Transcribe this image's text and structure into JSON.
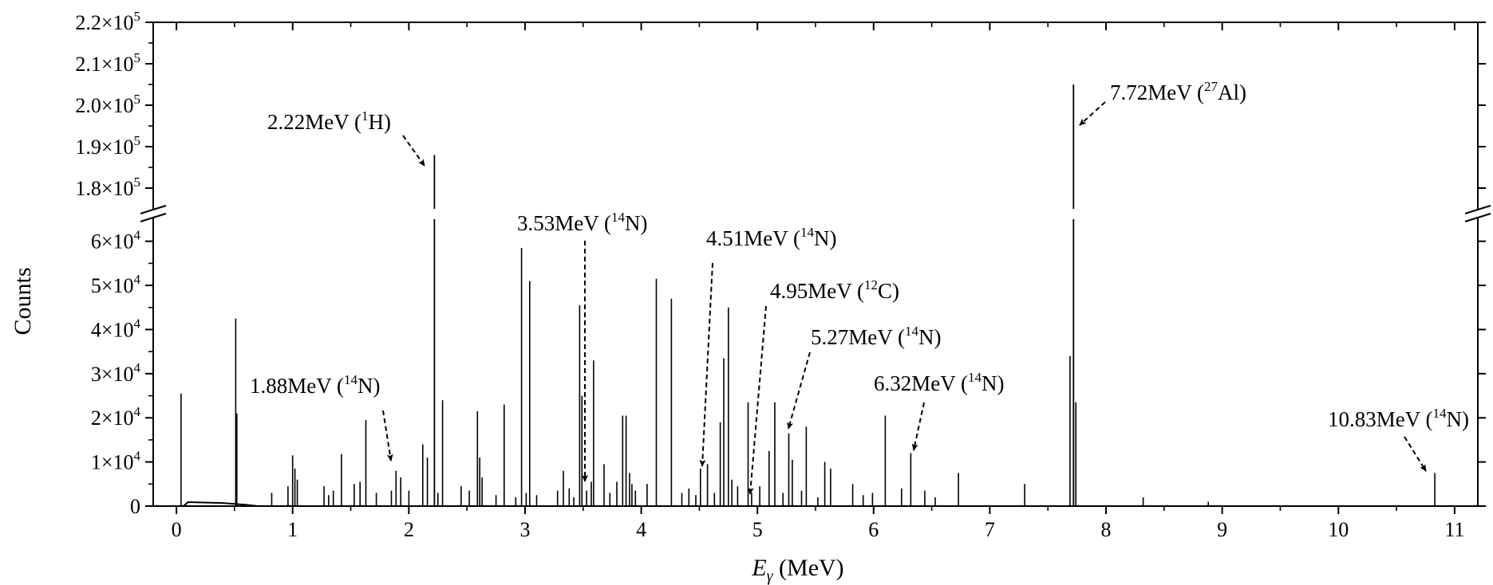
{
  "chart_data": {
    "type": "bar",
    "title": "",
    "xlabel": "E",
    "xlabel_sub": "γ",
    "xlabel_unit": " (MeV)",
    "ylabel": "Counts",
    "xlim": [
      -0.2,
      11.2
    ],
    "ylim_lower": [
      0,
      65000
    ],
    "ylim_upper": [
      175000,
      220000
    ],
    "x_ticks": [
      {
        "v": 0,
        "label": "0"
      },
      {
        "v": 1,
        "label": "1"
      },
      {
        "v": 2,
        "label": "2"
      },
      {
        "v": 3,
        "label": "3"
      },
      {
        "v": 4,
        "label": "4"
      },
      {
        "v": 5,
        "label": "5"
      },
      {
        "v": 6,
        "label": "6"
      },
      {
        "v": 7,
        "label": "7"
      },
      {
        "v": 8,
        "label": "8"
      },
      {
        "v": 9,
        "label": "9"
      },
      {
        "v": 10,
        "label": "10"
      },
      {
        "v": 11,
        "label": "11"
      }
    ],
    "y_ticks_lower": [
      {
        "v": 0,
        "mant": "0",
        "exp": ""
      },
      {
        "v": 10000,
        "mant": "1×10",
        "exp": "4"
      },
      {
        "v": 20000,
        "mant": "2×10",
        "exp": "4"
      },
      {
        "v": 30000,
        "mant": "3×10",
        "exp": "4"
      },
      {
        "v": 40000,
        "mant": "4×10",
        "exp": "4"
      },
      {
        "v": 50000,
        "mant": "5×10",
        "exp": "4"
      },
      {
        "v": 60000,
        "mant": "6×10",
        "exp": "4"
      }
    ],
    "y_ticks_upper": [
      {
        "v": 180000,
        "mant": "1.8×10",
        "exp": "5"
      },
      {
        "v": 190000,
        "mant": "1.9×10",
        "exp": "5"
      },
      {
        "v": 200000,
        "mant": "2.0×10",
        "exp": "5"
      },
      {
        "v": 210000,
        "mant": "2.1×10",
        "exp": "5"
      },
      {
        "v": 220000,
        "mant": "2.2×10",
        "exp": "5"
      }
    ],
    "peaks": [
      {
        "x": 0.04,
        "y": 25500
      },
      {
        "x": 0.51,
        "y": 42500
      },
      {
        "x": 0.52,
        "y": 21000
      },
      {
        "x": 0.82,
        "y": 3000
      },
      {
        "x": 0.96,
        "y": 4500
      },
      {
        "x": 1.0,
        "y": 11500
      },
      {
        "x": 1.02,
        "y": 8500
      },
      {
        "x": 1.04,
        "y": 6000
      },
      {
        "x": 1.27,
        "y": 4500
      },
      {
        "x": 1.31,
        "y": 2500
      },
      {
        "x": 1.35,
        "y": 3500
      },
      {
        "x": 1.42,
        "y": 11800
      },
      {
        "x": 1.53,
        "y": 5000
      },
      {
        "x": 1.58,
        "y": 5500
      },
      {
        "x": 1.63,
        "y": 19500
      },
      {
        "x": 1.72,
        "y": 3000
      },
      {
        "x": 1.85,
        "y": 3500
      },
      {
        "x": 1.89,
        "y": 8000
      },
      {
        "x": 1.93,
        "y": 6500
      },
      {
        "x": 2.0,
        "y": 3500
      },
      {
        "x": 2.12,
        "y": 14000
      },
      {
        "x": 2.16,
        "y": 11000
      },
      {
        "x": 2.22,
        "y": 188000
      },
      {
        "x": 2.25,
        "y": 3000
      },
      {
        "x": 2.29,
        "y": 24000
      },
      {
        "x": 2.45,
        "y": 4500
      },
      {
        "x": 2.52,
        "y": 3500
      },
      {
        "x": 2.59,
        "y": 21500
      },
      {
        "x": 2.61,
        "y": 11000
      },
      {
        "x": 2.63,
        "y": 6500
      },
      {
        "x": 2.75,
        "y": 2500
      },
      {
        "x": 2.82,
        "y": 23000
      },
      {
        "x": 2.92,
        "y": 2000
      },
      {
        "x": 2.97,
        "y": 58500
      },
      {
        "x": 3.01,
        "y": 3000
      },
      {
        "x": 3.04,
        "y": 51000
      },
      {
        "x": 3.1,
        "y": 2500
      },
      {
        "x": 3.28,
        "y": 3500
      },
      {
        "x": 3.33,
        "y": 8000
      },
      {
        "x": 3.38,
        "y": 4000
      },
      {
        "x": 3.42,
        "y": 2000
      },
      {
        "x": 3.47,
        "y": 45500
      },
      {
        "x": 3.49,
        "y": 25000
      },
      {
        "x": 3.53,
        "y": 3500
      },
      {
        "x": 3.57,
        "y": 5500
      },
      {
        "x": 3.59,
        "y": 33000
      },
      {
        "x": 3.68,
        "y": 9500
      },
      {
        "x": 3.73,
        "y": 3000
      },
      {
        "x": 3.79,
        "y": 5500
      },
      {
        "x": 3.84,
        "y": 20500
      },
      {
        "x": 3.87,
        "y": 20500
      },
      {
        "x": 3.9,
        "y": 7500
      },
      {
        "x": 3.92,
        "y": 5000
      },
      {
        "x": 3.95,
        "y": 3500
      },
      {
        "x": 4.05,
        "y": 5000
      },
      {
        "x": 4.13,
        "y": 51500
      },
      {
        "x": 4.26,
        "y": 47000
      },
      {
        "x": 4.35,
        "y": 3000
      },
      {
        "x": 4.41,
        "y": 4000
      },
      {
        "x": 4.47,
        "y": 2500
      },
      {
        "x": 4.51,
        "y": 8500
      },
      {
        "x": 4.57,
        "y": 9500
      },
      {
        "x": 4.63,
        "y": 3000
      },
      {
        "x": 4.68,
        "y": 19000
      },
      {
        "x": 4.71,
        "y": 33500
      },
      {
        "x": 4.75,
        "y": 45000
      },
      {
        "x": 4.78,
        "y": 6000
      },
      {
        "x": 4.83,
        "y": 4500
      },
      {
        "x": 4.92,
        "y": 23500
      },
      {
        "x": 4.95,
        "y": 3000
      },
      {
        "x": 5.02,
        "y": 4500
      },
      {
        "x": 5.1,
        "y": 12500
      },
      {
        "x": 5.15,
        "y": 23500
      },
      {
        "x": 5.22,
        "y": 3000
      },
      {
        "x": 5.27,
        "y": 16500
      },
      {
        "x": 5.3,
        "y": 10500
      },
      {
        "x": 5.38,
        "y": 3500
      },
      {
        "x": 5.42,
        "y": 18000
      },
      {
        "x": 5.52,
        "y": 2000
      },
      {
        "x": 5.58,
        "y": 10000
      },
      {
        "x": 5.63,
        "y": 8500
      },
      {
        "x": 5.82,
        "y": 5000
      },
      {
        "x": 5.91,
        "y": 2500
      },
      {
        "x": 5.99,
        "y": 3000
      },
      {
        "x": 6.1,
        "y": 20500
      },
      {
        "x": 6.24,
        "y": 4000
      },
      {
        "x": 6.32,
        "y": 12000
      },
      {
        "x": 6.44,
        "y": 3500
      },
      {
        "x": 6.53,
        "y": 2000
      },
      {
        "x": 6.73,
        "y": 7500
      },
      {
        "x": 7.3,
        "y": 5000
      },
      {
        "x": 7.69,
        "y": 34000
      },
      {
        "x": 7.72,
        "y": 205000
      },
      {
        "x": 7.74,
        "y": 23500
      },
      {
        "x": 8.32,
        "y": 2000
      },
      {
        "x": 8.88,
        "y": 1000
      },
      {
        "x": 10.83,
        "y": 7500
      }
    ],
    "annotations": [
      {
        "text": "2.22MeV (",
        "sup": "1",
        "elem": "H)",
        "peak_x": 2.22
      },
      {
        "text": "3.53MeV (",
        "sup": "14",
        "elem": "N)",
        "peak_x": 3.53
      },
      {
        "text": "4.51MeV (",
        "sup": "14",
        "elem": "N)",
        "peak_x": 4.51
      },
      {
        "text": "4.95MeV (",
        "sup": "12",
        "elem": "C)",
        "peak_x": 4.95
      },
      {
        "text": "5.27MeV (",
        "sup": "14",
        "elem": "N)",
        "peak_x": 5.27
      },
      {
        "text": "1.88MeV (",
        "sup": "14",
        "elem": "N)",
        "peak_x": 1.88
      },
      {
        "text": "6.32MeV (",
        "sup": "14",
        "elem": "N)",
        "peak_x": 6.32
      },
      {
        "text": "7.72MeV (",
        "sup": "27",
        "elem": "Al)",
        "peak_x": 7.72
      },
      {
        "text": "10.83MeV (",
        "sup": "14",
        "elem": "N)",
        "peak_x": 10.83
      }
    ]
  }
}
